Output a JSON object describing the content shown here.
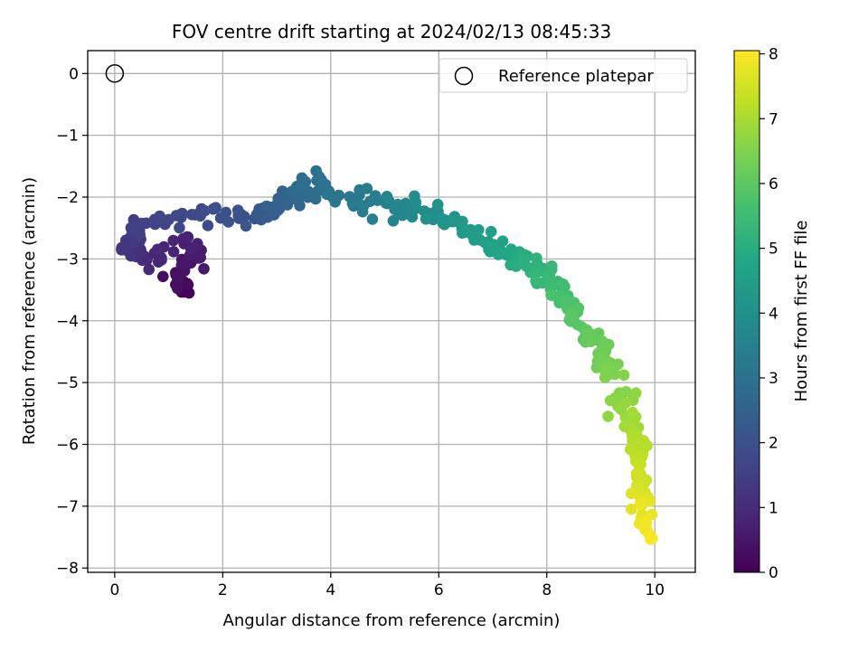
{
  "chart_data": {
    "type": "scatter",
    "title": "FOV centre drift starting at 2024/02/13 08:45:33",
    "xlabel": "Angular distance from reference (arcmin)",
    "ylabel": "Rotation from reference (arcmin)",
    "xlim": [
      -0.5,
      10.75
    ],
    "ylim": [
      -8.07,
      0.37
    ],
    "xticks": [
      0,
      2,
      4,
      6,
      8,
      10
    ],
    "yticks": [
      0,
      -1,
      -2,
      -3,
      -4,
      -5,
      -6,
      -7,
      -8
    ],
    "xtick_labels": [
      "0",
      "2",
      "4",
      "6",
      "8",
      "10"
    ],
    "ytick_labels": [
      "0",
      "−1",
      "−2",
      "−3",
      "−4",
      "−5",
      "−6",
      "−7",
      "−8"
    ],
    "grid": true,
    "legend": {
      "position": "top-right",
      "entries": [
        {
          "label": "Reference platepar",
          "marker": "open-circle"
        }
      ]
    },
    "reference_point": {
      "x": 0,
      "y": 0
    },
    "colorbar": {
      "label": "Hours from first FF file",
      "colormap": "viridis",
      "range": [
        0,
        8.05
      ],
      "ticks": [
        0,
        1,
        2,
        3,
        4,
        5,
        6,
        7,
        8
      ],
      "tick_labels": [
        "0",
        "1",
        "2",
        "3",
        "4",
        "5",
        "6",
        "7",
        "8"
      ]
    },
    "anchors": [
      [
        0.0,
        1.3,
        -3.45
      ],
      [
        0.3,
        1.1,
        -3.3
      ],
      [
        0.55,
        1.45,
        -3.0
      ],
      [
        0.75,
        1.4,
        -2.65
      ],
      [
        0.95,
        0.6,
        -3.0
      ],
      [
        1.2,
        0.3,
        -2.8
      ],
      [
        1.5,
        0.35,
        -2.5
      ],
      [
        1.8,
        1.5,
        -2.3
      ],
      [
        2.1,
        2.5,
        -2.3
      ],
      [
        2.4,
        3.0,
        -2.2
      ],
      [
        2.7,
        3.4,
        -2.0
      ],
      [
        3.0,
        3.75,
        -1.75
      ],
      [
        3.2,
        4.4,
        -2.1
      ],
      [
        3.5,
        5.0,
        -2.1
      ],
      [
        3.8,
        5.6,
        -2.15
      ],
      [
        4.1,
        6.2,
        -2.35
      ],
      [
        4.4,
        6.7,
        -2.6
      ],
      [
        4.7,
        7.2,
        -2.8
      ],
      [
        5.0,
        7.6,
        -3.05
      ],
      [
        5.4,
        8.05,
        -3.35
      ],
      [
        5.8,
        8.5,
        -3.85
      ],
      [
        6.2,
        8.9,
        -4.4
      ],
      [
        6.5,
        9.2,
        -4.95
      ],
      [
        6.8,
        9.5,
        -5.5
      ],
      [
        7.1,
        9.7,
        -5.95
      ],
      [
        7.4,
        9.7,
        -6.5
      ],
      [
        7.7,
        9.75,
        -7.0
      ],
      [
        8.0,
        9.9,
        -7.55
      ]
    ],
    "scatter_params": {
      "count": 420,
      "seed": 20240213,
      "jitter_x": 0.2,
      "jitter_y": 0.18
    }
  }
}
